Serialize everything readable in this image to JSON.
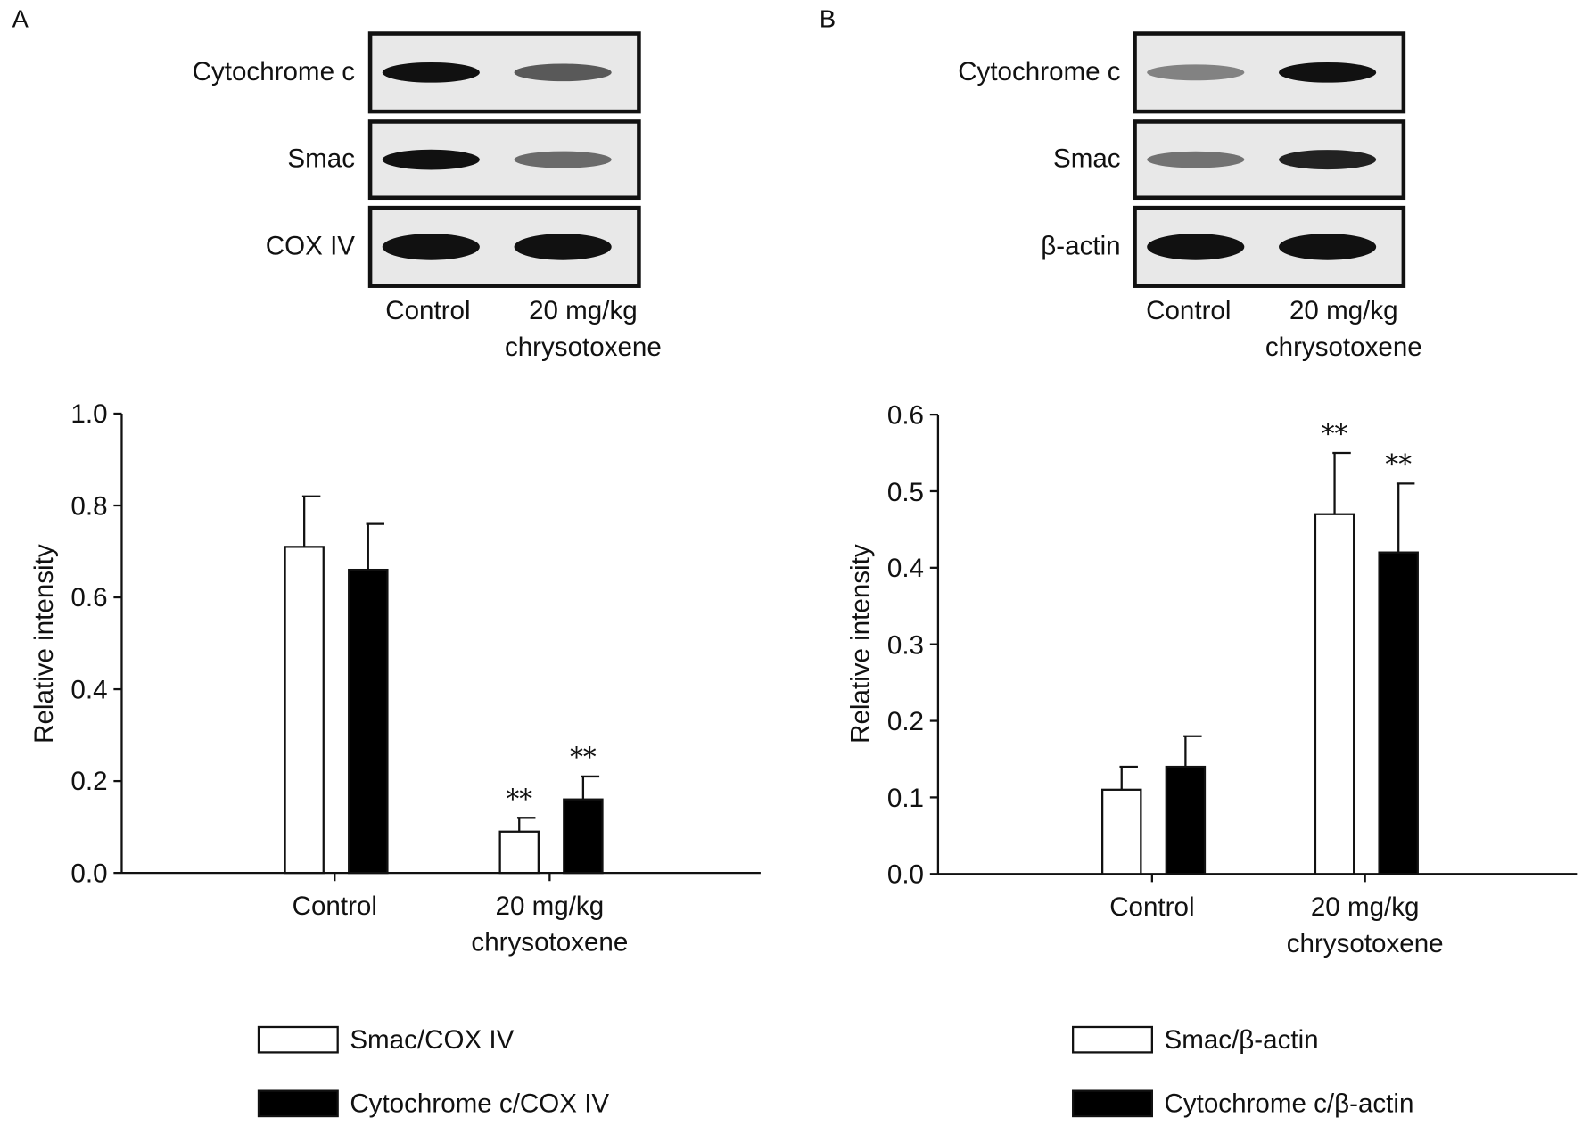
{
  "panels": [
    {
      "label": "A",
      "blot": {
        "rows": [
          "Cytochrome c",
          "Smac",
          "COX IV"
        ],
        "lanes": [
          "Control",
          "20 mg/kg\nchrysotoxene"
        ]
      }
    },
    {
      "label": "B",
      "blot": {
        "rows": [
          "Cytochrome c",
          "Smac",
          "β-actin"
        ],
        "lanes": [
          "Control",
          "20 mg/kg\nchrysotoxene"
        ]
      }
    }
  ],
  "chart_data": [
    {
      "type": "bar",
      "y_label": "Relative intensity",
      "categories": [
        "Control",
        "20 mg/kg\nchrysotoxene"
      ],
      "series": [
        {
          "name": "Smac/COX IV",
          "color": "#ffffff",
          "values": [
            0.71,
            0.09
          ],
          "errors": [
            0.11,
            0.03
          ],
          "annotations": [
            null,
            "**"
          ]
        },
        {
          "name": "Cytochrome c/COX IV",
          "color": "#000000",
          "values": [
            0.66,
            0.16
          ],
          "errors": [
            0.1,
            0.05
          ],
          "annotations": [
            null,
            "**"
          ]
        }
      ],
      "ylim": [
        0,
        1.0
      ],
      "yticks": [
        {
          "value": 0,
          "label": "0.0"
        },
        0.2,
        0.4,
        0.6,
        0.8,
        {
          "value": 1.0,
          "label": "1.0"
        }
      ],
      "grid": false
    },
    {
      "type": "bar",
      "y_label": "Relative intensity",
      "categories": [
        "Control",
        "20 mg/kg\nchrysotoxene"
      ],
      "series": [
        {
          "name": "Smac/β-actin",
          "color": "#ffffff",
          "values": [
            0.11,
            0.47
          ],
          "errors": [
            0.03,
            0.08
          ],
          "annotations": [
            null,
            "**"
          ]
        },
        {
          "name": "Cytochrome c/β-actin",
          "color": "#000000",
          "values": [
            0.14,
            0.42
          ],
          "errors": [
            0.04,
            0.09
          ],
          "annotations": [
            null,
            "**"
          ]
        }
      ],
      "ylim": [
        0,
        0.6
      ],
      "yticks": [
        {
          "value": 0,
          "label": "0.0"
        },
        0.1,
        0.2,
        0.3,
        0.4,
        0.5,
        0.6
      ],
      "grid": false
    }
  ]
}
